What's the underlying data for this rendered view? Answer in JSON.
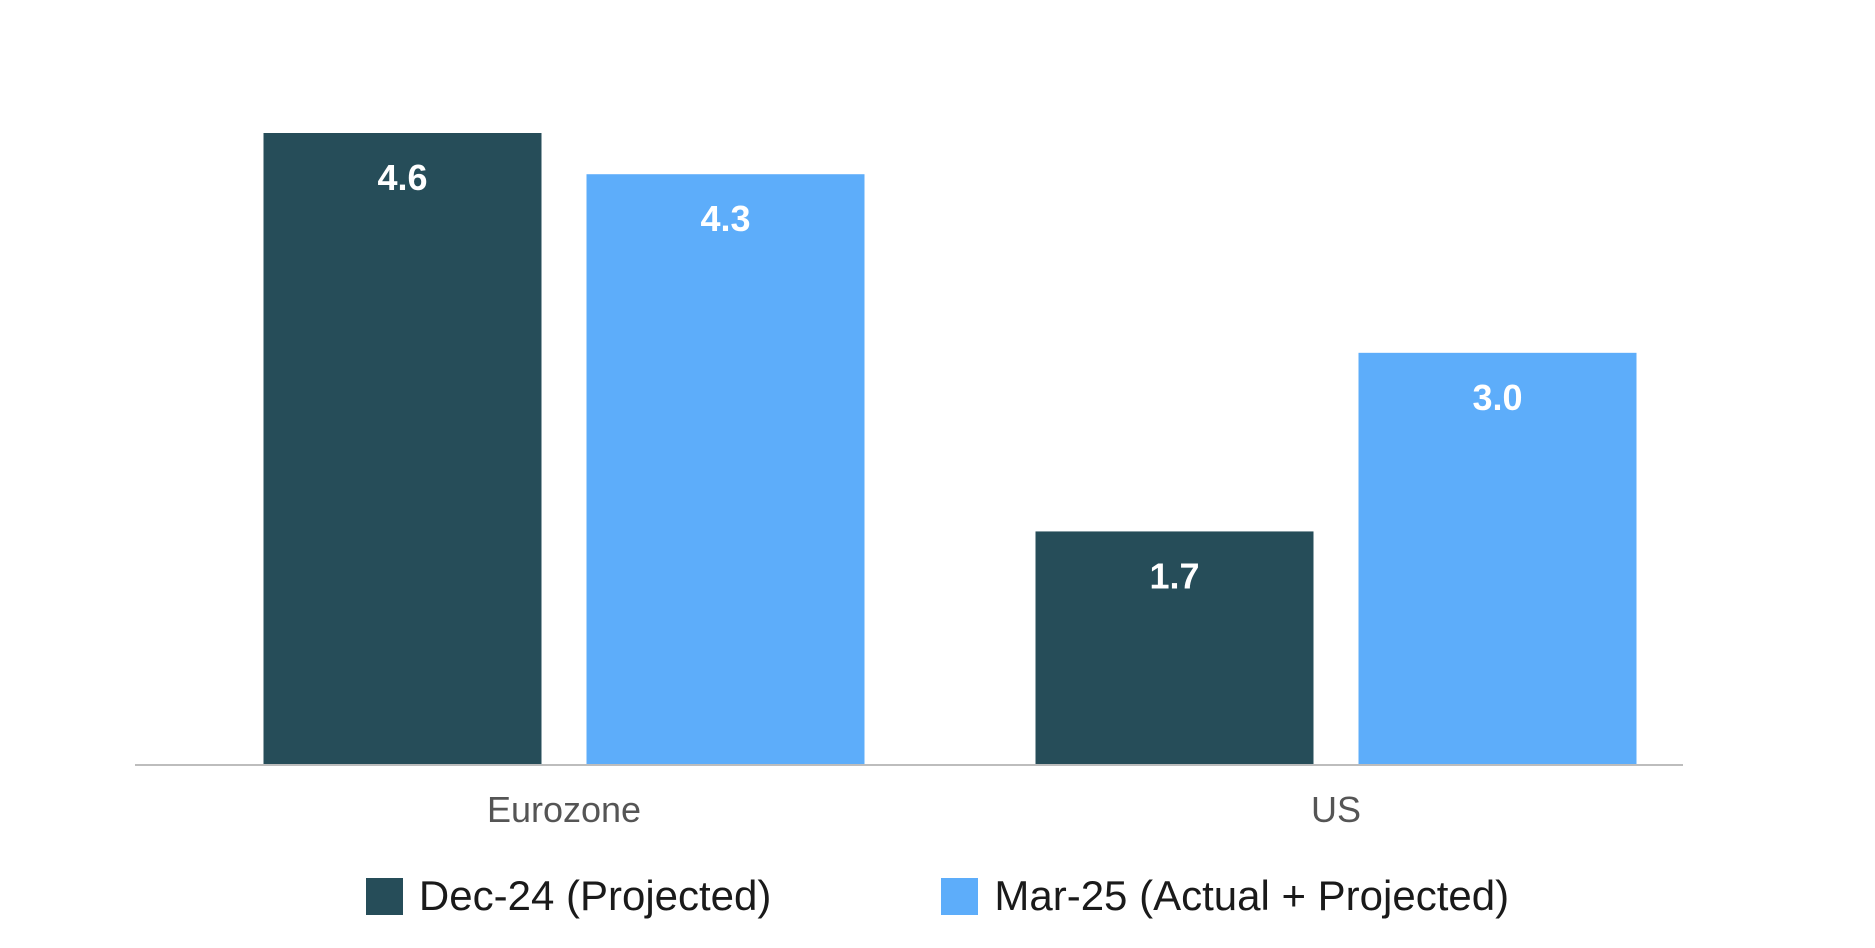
{
  "chart_data": {
    "type": "bar",
    "categories": [
      "Eurozone",
      "US"
    ],
    "series": [
      {
        "name": "Dec-24 (Projected)",
        "values": [
          4.6,
          1.7
        ],
        "color": "#264D59"
      },
      {
        "name": "Mar-25 (Actual + Projected)",
        "values": [
          4.3,
          3.0
        ],
        "color": "#5DADFA"
      }
    ],
    "title": "",
    "xlabel": "",
    "ylabel": "",
    "ylim": [
      0,
      4.6
    ],
    "grid": false,
    "legend_position": "bottom",
    "data_labels": true,
    "value_labels_format": "one-decimal"
  },
  "colors": {
    "axis": "#bdbdbd",
    "tick_label": "#555555",
    "value_label": "#ffffff"
  }
}
